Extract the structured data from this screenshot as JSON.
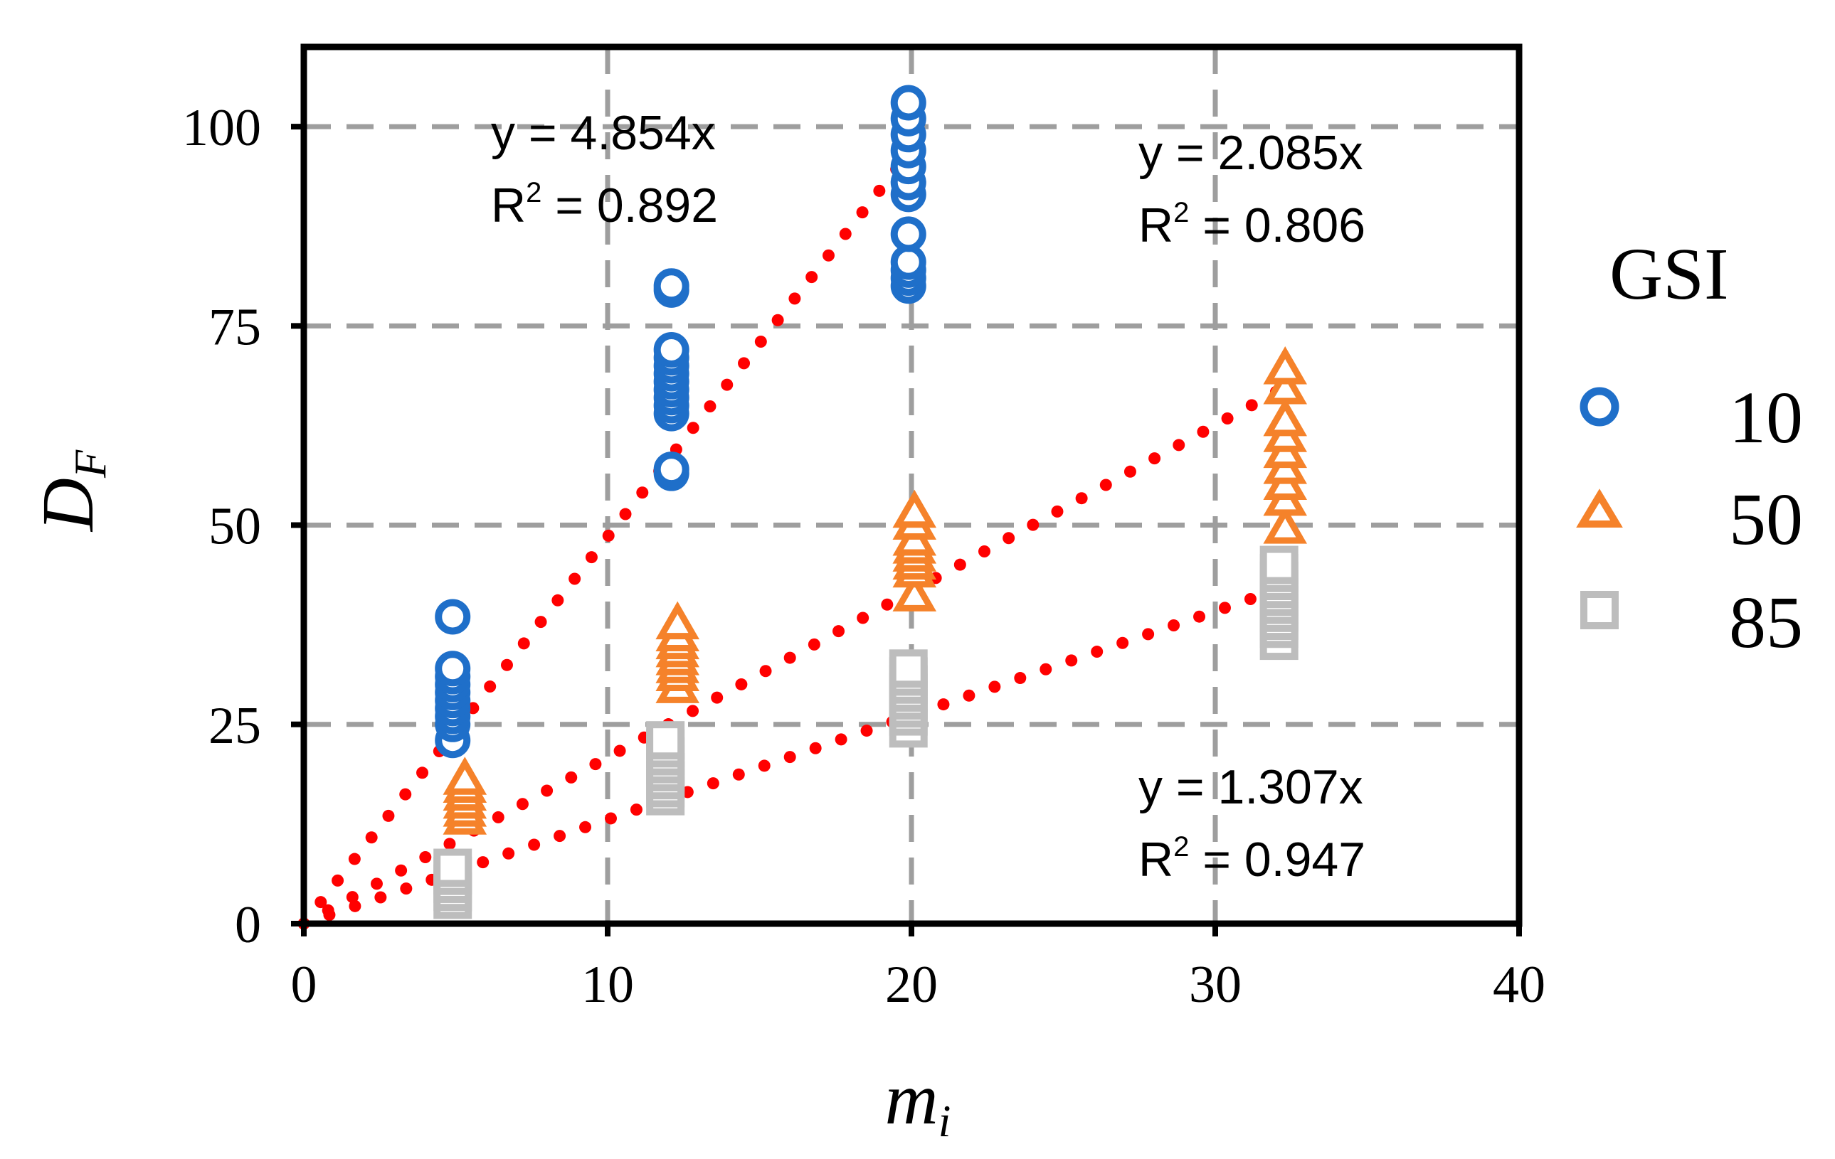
{
  "chart_data": {
    "type": "scatter",
    "xlabel": "m",
    "xlabel_subscript": "i",
    "ylabel": "D",
    "ylabel_subscript": "F",
    "xlim": [
      0,
      40
    ],
    "ylim": [
      0,
      110
    ],
    "xticks": [
      0,
      10,
      20,
      30,
      40
    ],
    "yticks": [
      0,
      25,
      50,
      75,
      100
    ],
    "grid": "dashed",
    "legend": {
      "title": "GSI",
      "position": "right"
    },
    "series": [
      {
        "name": "10",
        "marker": "circle",
        "color": "#1f6fc9",
        "points": [
          [
            4.9,
            23
          ],
          [
            4.9,
            25
          ],
          [
            4.9,
            26
          ],
          [
            4.9,
            27
          ],
          [
            4.9,
            28
          ],
          [
            4.9,
            29
          ],
          [
            4.9,
            30
          ],
          [
            4.9,
            31
          ],
          [
            4.9,
            32
          ],
          [
            4.9,
            38.5
          ],
          [
            12.1,
            56.5
          ],
          [
            12.1,
            57
          ],
          [
            12.1,
            64
          ],
          [
            12.1,
            65
          ],
          [
            12.1,
            66
          ],
          [
            12.1,
            67
          ],
          [
            12.1,
            68
          ],
          [
            12.1,
            69
          ],
          [
            12.1,
            70
          ],
          [
            12.1,
            71
          ],
          [
            12.1,
            72
          ],
          [
            12.1,
            79.5
          ],
          [
            12.1,
            80
          ],
          [
            19.9,
            80
          ],
          [
            19.9,
            81
          ],
          [
            19.9,
            82
          ],
          [
            19.9,
            83
          ],
          [
            19.9,
            86.5
          ],
          [
            19.9,
            91.5
          ],
          [
            19.9,
            93
          ],
          [
            19.9,
            95
          ],
          [
            19.9,
            97
          ],
          [
            19.9,
            99
          ],
          [
            19.9,
            101
          ],
          [
            19.9,
            103
          ]
        ]
      },
      {
        "name": "50",
        "marker": "triangle",
        "color": "#f5822a",
        "points": [
          [
            5.3,
            13
          ],
          [
            5.3,
            14
          ],
          [
            5.3,
            15
          ],
          [
            5.3,
            16
          ],
          [
            5.3,
            17
          ],
          [
            5.3,
            18
          ],
          [
            12.3,
            29.5
          ],
          [
            12.3,
            31
          ],
          [
            12.3,
            32
          ],
          [
            12.3,
            33
          ],
          [
            12.3,
            34
          ],
          [
            12.3,
            35
          ],
          [
            12.3,
            36
          ],
          [
            12.3,
            37.5
          ],
          [
            20.1,
            41
          ],
          [
            20.1,
            44
          ],
          [
            20.1,
            45
          ],
          [
            20.1,
            46
          ],
          [
            20.1,
            47
          ],
          [
            20.1,
            48
          ],
          [
            20.1,
            50
          ],
          [
            20.1,
            51.5
          ],
          [
            32.3,
            49.5
          ],
          [
            32.3,
            53
          ],
          [
            32.3,
            55
          ],
          [
            32.3,
            57
          ],
          [
            32.3,
            59
          ],
          [
            32.3,
            61
          ],
          [
            32.3,
            63
          ],
          [
            32.3,
            67
          ],
          [
            32.3,
            69.5
          ]
        ]
      },
      {
        "name": "85",
        "marker": "square",
        "color": "#bdbdbd",
        "points": [
          [
            4.9,
            3
          ],
          [
            4.9,
            4
          ],
          [
            4.9,
            5
          ],
          [
            4.9,
            6
          ],
          [
            4.9,
            7
          ],
          [
            11.9,
            16
          ],
          [
            11.9,
            17
          ],
          [
            11.9,
            18
          ],
          [
            11.9,
            19
          ],
          [
            11.9,
            20
          ],
          [
            11.9,
            21
          ],
          [
            11.9,
            22
          ],
          [
            11.9,
            23
          ],
          [
            19.9,
            24.5
          ],
          [
            19.9,
            26
          ],
          [
            19.9,
            27
          ],
          [
            19.9,
            28
          ],
          [
            19.9,
            29
          ],
          [
            19.9,
            30
          ],
          [
            19.9,
            31
          ],
          [
            19.9,
            32
          ],
          [
            32.1,
            35.5
          ],
          [
            32.1,
            37
          ],
          [
            32.1,
            38
          ],
          [
            32.1,
            39
          ],
          [
            32.1,
            40
          ],
          [
            32.1,
            41
          ],
          [
            32.1,
            42
          ],
          [
            32.1,
            43
          ],
          [
            32.1,
            44
          ],
          [
            32.1,
            45
          ]
        ]
      }
    ],
    "trendlines": [
      {
        "series": "10",
        "slope": 4.854,
        "x_range": [
          0,
          19.5
        ],
        "equation": "y = 4.854x",
        "r2_prefix": "R",
        "r2_sup": "2",
        "r2_value": " = 0.892"
      },
      {
        "series": "50",
        "slope": 2.085,
        "x_range": [
          0,
          32.0
        ],
        "equation": "y = 2.085x",
        "r2_prefix": "R",
        "r2_sup": "2",
        "r2_value": " = 0.806"
      },
      {
        "series": "85",
        "slope": 1.307,
        "x_range": [
          0,
          32.0
        ],
        "equation": "y = 1.307x",
        "r2_prefix": "R",
        "r2_sup": "2",
        "r2_value": " = 0.947"
      }
    ],
    "trendline_color": "#ff0000"
  }
}
